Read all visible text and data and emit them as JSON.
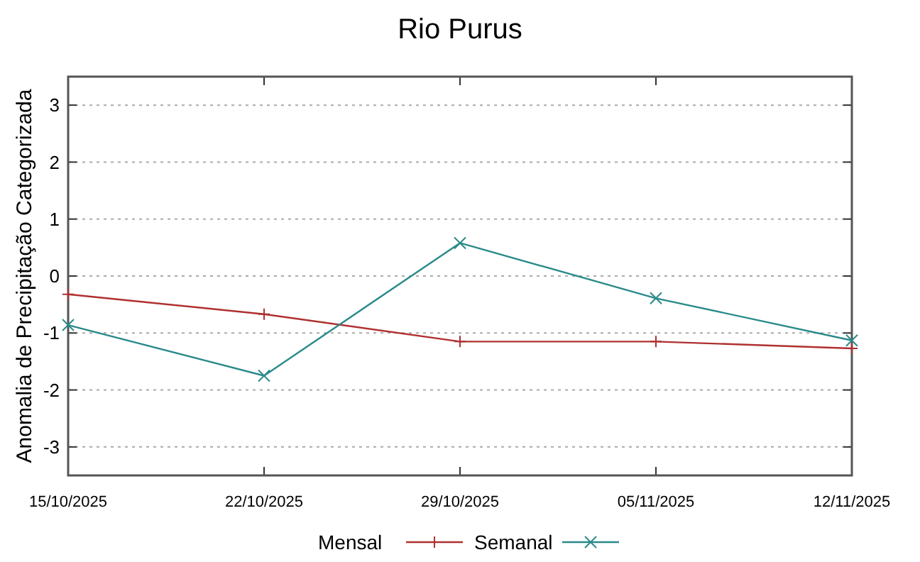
{
  "chart_data": {
    "type": "line",
    "title": "Rio Purus",
    "ylabel": "Anomalia de Precipitação Categorizada",
    "x": [
      "2025-10-15",
      "2025-10-22",
      "2025-10-29",
      "2025-11-05",
      "2025-11-12"
    ],
    "xlim": [
      "2025-10-15",
      "2025-11-12"
    ],
    "xticks": [
      {
        "value": "2025-10-15",
        "label": "15/10/2025"
      },
      {
        "value": "2025-10-22",
        "label": "22/10/2025"
      },
      {
        "value": "2025-10-29",
        "label": "29/10/2025"
      },
      {
        "value": "2025-11-05",
        "label": "05/11/2025"
      },
      {
        "value": "2025-11-12",
        "label": "12/11/2025"
      }
    ],
    "ylim": [
      -3.5,
      3.5
    ],
    "yticks": [
      -3,
      -2,
      -1,
      0,
      1,
      2,
      3
    ],
    "grid": "y",
    "legend": "bottom",
    "line_style": "solid",
    "series": [
      {
        "name": "Mensal",
        "color": "#b03030",
        "marker": "cross",
        "values": [
          -0.32,
          -0.67,
          -1.15,
          -1.15,
          -1.27
        ]
      },
      {
        "name": "Semanal",
        "color": "#2a8a8a",
        "marker": "x",
        "values": [
          -0.86,
          -1.75,
          0.58,
          -0.39,
          -1.13
        ]
      }
    ]
  }
}
